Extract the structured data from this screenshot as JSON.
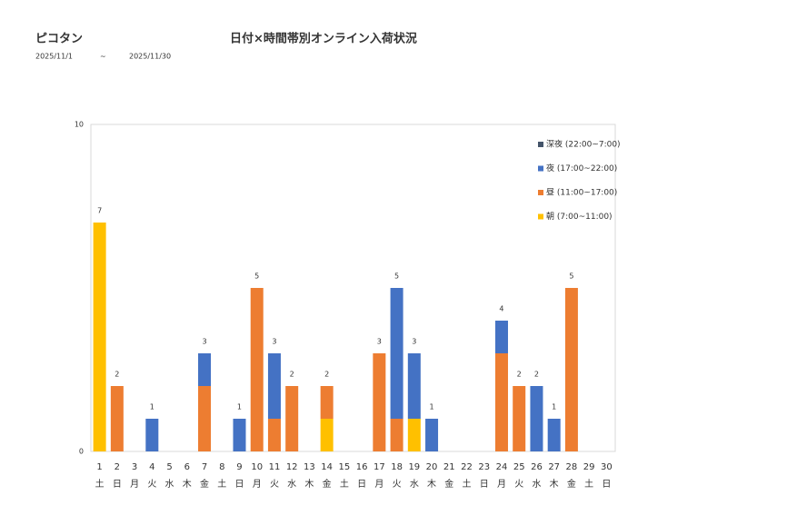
{
  "chart_data": {
    "type": "stacked_bar",
    "store": "ピコタン",
    "title": "日付×時間帯別オンライン入荷状況",
    "date_from": "2025/11/1",
    "date_sep": "~",
    "date_to": "2025/11/30",
    "categories": [
      "1",
      "2",
      "3",
      "4",
      "5",
      "6",
      "7",
      "8",
      "9",
      "10",
      "11",
      "12",
      "13",
      "14",
      "15",
      "16",
      "17",
      "18",
      "19",
      "20",
      "21",
      "22",
      "23",
      "24",
      "25",
      "26",
      "27",
      "28",
      "29",
      "30"
    ],
    "weekdays": [
      "土",
      "日",
      "月",
      "火",
      "水",
      "木",
      "金",
      "土",
      "日",
      "月",
      "火",
      "水",
      "木",
      "金",
      "土",
      "日",
      "月",
      "火",
      "水",
      "木",
      "金",
      "土",
      "日",
      "月",
      "火",
      "水",
      "木",
      "金",
      "土",
      "日"
    ],
    "series": [
      {
        "name": "深夜 (22:00~7:00)",
        "color": "#44546a",
        "values": [
          0,
          0,
          0,
          0,
          0,
          0,
          0,
          0,
          0,
          0,
          0,
          0,
          0,
          0,
          0,
          0,
          0,
          0,
          0,
          0,
          0,
          0,
          0,
          0,
          0,
          0,
          0,
          0,
          0,
          0
        ]
      },
      {
        "name": "夜 (17:00~22:00)",
        "color": "#4472c4",
        "values": [
          0,
          0,
          0,
          1,
          0,
          0,
          1,
          0,
          1,
          0,
          2,
          0,
          0,
          0,
          0,
          0,
          0,
          4,
          2,
          1,
          0,
          0,
          0,
          1,
          0,
          2,
          1,
          0,
          0,
          0
        ]
      },
      {
        "name": "昼 (11:00~17:00)",
        "color": "#ed7d31",
        "values": [
          0,
          2,
          0,
          0,
          0,
          0,
          2,
          0,
          0,
          5,
          1,
          2,
          0,
          1,
          0,
          0,
          3,
          1,
          0,
          0,
          0,
          0,
          0,
          3,
          2,
          0,
          0,
          5,
          0,
          0
        ]
      },
      {
        "name": "朝 (7:00~11:00)",
        "color": "#ffc000",
        "values": [
          7,
          0,
          0,
          0,
          0,
          0,
          0,
          0,
          0,
          0,
          0,
          0,
          0,
          1,
          0,
          0,
          0,
          0,
          1,
          0,
          0,
          0,
          0,
          0,
          0,
          0,
          0,
          0,
          0,
          0
        ]
      }
    ],
    "totals": [
      7,
      2,
      null,
      1,
      null,
      null,
      3,
      null,
      1,
      5,
      3,
      2,
      null,
      2,
      null,
      null,
      3,
      5,
      3,
      1,
      null,
      null,
      null,
      4,
      2,
      2,
      1,
      5,
      null,
      null
    ],
    "ylim": [
      0,
      10
    ],
    "yticks": [
      0,
      10
    ],
    "grid": false
  }
}
